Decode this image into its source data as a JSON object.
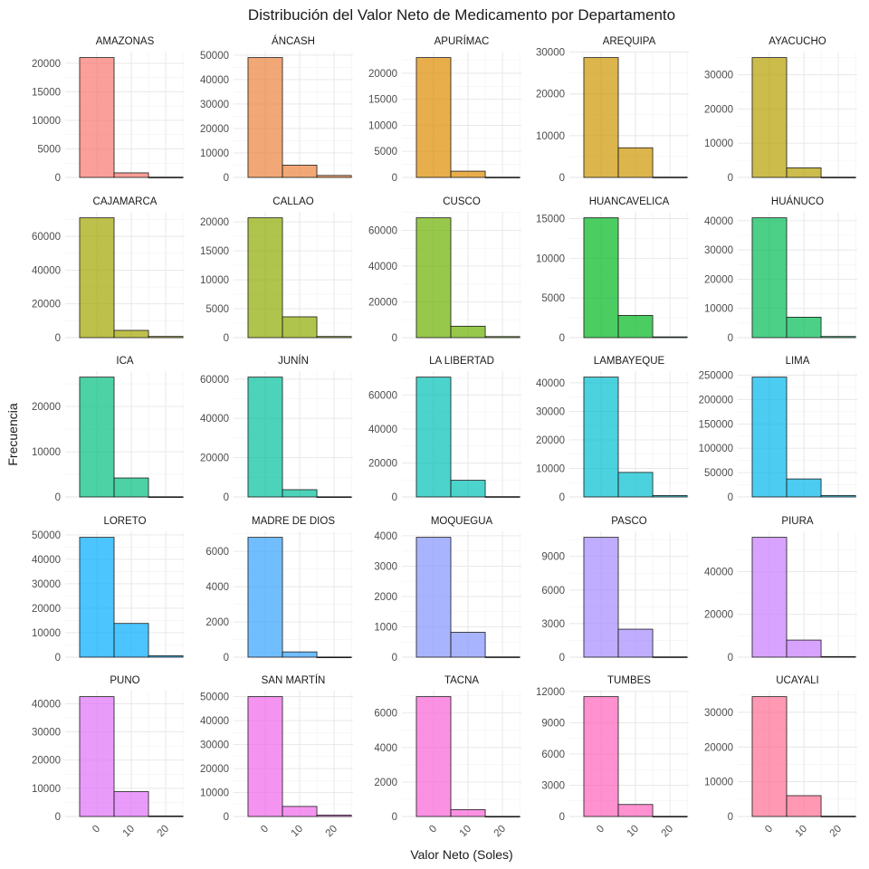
{
  "chart_data": {
    "type": "bar",
    "title": "Distribución del Valor Neto de Medicamento por Departamento",
    "xlabel": "Valor Neto (Soles)",
    "ylabel": "Frecuencia",
    "grid": true,
    "legend": "none",
    "bin_centers": [
      0,
      10,
      20
    ],
    "bin_width": 10,
    "x_ticks": [
      0,
      10,
      20
    ],
    "panels": [
      {
        "name": "AMAZONAS",
        "color": "#F8766D",
        "counts": [
          21000,
          800,
          50
        ],
        "y_ticks": [
          0,
          5000,
          10000,
          15000,
          20000
        ]
      },
      {
        "name": "ÁNCASH",
        "color": "#EC823C",
        "counts": [
          49000,
          5000,
          800
        ],
        "y_ticks": [
          0,
          10000,
          20000,
          30000,
          40000,
          50000
        ]
      },
      {
        "name": "APURÍMAC",
        "color": "#DE8C00",
        "counts": [
          23000,
          1200,
          50
        ],
        "y_ticks": [
          0,
          5000,
          10000,
          15000,
          20000
        ]
      },
      {
        "name": "AREQUIPA",
        "color": "#CD9600",
        "counts": [
          28700,
          7100,
          80
        ],
        "y_ticks": [
          0,
          10000,
          20000,
          30000
        ]
      },
      {
        "name": "AYACUCHO",
        "color": "#B79F00",
        "counts": [
          35000,
          2800,
          80
        ],
        "y_ticks": [
          0,
          10000,
          20000,
          30000
        ]
      },
      {
        "name": "CAJAMARCA",
        "color": "#A3A500",
        "counts": [
          71000,
          4300,
          700
        ],
        "y_ticks": [
          0,
          20000,
          40000,
          60000
        ]
      },
      {
        "name": "CALLAO",
        "color": "#8BAB00",
        "counts": [
          20700,
          3600,
          200
        ],
        "y_ticks": [
          0,
          5000,
          10000,
          15000,
          20000
        ]
      },
      {
        "name": "CUSCO",
        "color": "#6BB100",
        "counts": [
          67000,
          6400,
          600
        ],
        "y_ticks": [
          0,
          20000,
          40000,
          60000
        ]
      },
      {
        "name": "HUANCAVELICA",
        "color": "#00B81F",
        "counts": [
          15100,
          2800,
          100
        ],
        "y_ticks": [
          0,
          5000,
          10000,
          15000
        ]
      },
      {
        "name": "HUÁNUCO",
        "color": "#00BC56",
        "counts": [
          41000,
          7000,
          400
        ],
        "y_ticks": [
          0,
          10000,
          20000,
          30000,
          40000
        ]
      },
      {
        "name": "ICA",
        "color": "#00BF7D",
        "counts": [
          26500,
          4200,
          50
        ],
        "y_ticks": [
          0,
          10000,
          20000
        ]
      },
      {
        "name": "JUNÍN",
        "color": "#00C19C",
        "counts": [
          61000,
          3700,
          100
        ],
        "y_ticks": [
          0,
          20000,
          40000,
          60000
        ]
      },
      {
        "name": "LA LIBERTAD",
        "color": "#00C0B7",
        "counts": [
          70500,
          9800,
          200
        ],
        "y_ticks": [
          0,
          20000,
          40000,
          60000
        ]
      },
      {
        "name": "LAMBAYEQUE",
        "color": "#00BDD0",
        "counts": [
          42000,
          8600,
          500
        ],
        "y_ticks": [
          0,
          10000,
          20000,
          30000,
          40000
        ]
      },
      {
        "name": "LIMA",
        "color": "#00B6EB",
        "counts": [
          246000,
          37000,
          3000
        ],
        "y_ticks": [
          0,
          50000,
          100000,
          150000,
          200000,
          250000
        ]
      },
      {
        "name": "LORETO",
        "color": "#00ABFD",
        "counts": [
          49000,
          13800,
          600
        ],
        "y_ticks": [
          0,
          10000,
          20000,
          30000,
          40000,
          50000
        ]
      },
      {
        "name": "MADRE DE DIOS",
        "color": "#35A2FF",
        "counts": [
          6800,
          300,
          10
        ],
        "y_ticks": [
          0,
          2000,
          4000,
          6000
        ]
      },
      {
        "name": "MOQUEGUA",
        "color": "#8494FF",
        "counts": [
          3950,
          820,
          10
        ],
        "y_ticks": [
          0,
          1000,
          2000,
          3000,
          4000
        ]
      },
      {
        "name": "PASCO",
        "color": "#A58AFF",
        "counts": [
          10700,
          2500,
          30
        ],
        "y_ticks": [
          0,
          3000,
          6000,
          9000
        ]
      },
      {
        "name": "PIURA",
        "color": "#C77CFF",
        "counts": [
          56000,
          8000,
          300
        ],
        "y_ticks": [
          0,
          20000,
          40000
        ]
      },
      {
        "name": "PUNO",
        "color": "#DF70F8",
        "counts": [
          42500,
          8800,
          200
        ],
        "y_ticks": [
          0,
          10000,
          20000,
          30000,
          40000
        ]
      },
      {
        "name": "SAN MARTÍN",
        "color": "#F066EA",
        "counts": [
          50000,
          4200,
          600
        ],
        "y_ticks": [
          0,
          10000,
          20000,
          30000,
          40000,
          50000
        ]
      },
      {
        "name": "TACNA",
        "color": "#FA62D5",
        "counts": [
          6950,
          400,
          10
        ],
        "y_ticks": [
          0,
          2000,
          4000,
          6000
        ]
      },
      {
        "name": "TUMBES",
        "color": "#FF62BC",
        "counts": [
          11500,
          1150,
          20
        ],
        "y_ticks": [
          0,
          3000,
          6000,
          9000,
          12000
        ]
      },
      {
        "name": "UCAYALI",
        "color": "#FF6C91",
        "counts": [
          34500,
          6000,
          100
        ],
        "y_ticks": [
          0,
          10000,
          20000,
          30000
        ]
      }
    ]
  }
}
